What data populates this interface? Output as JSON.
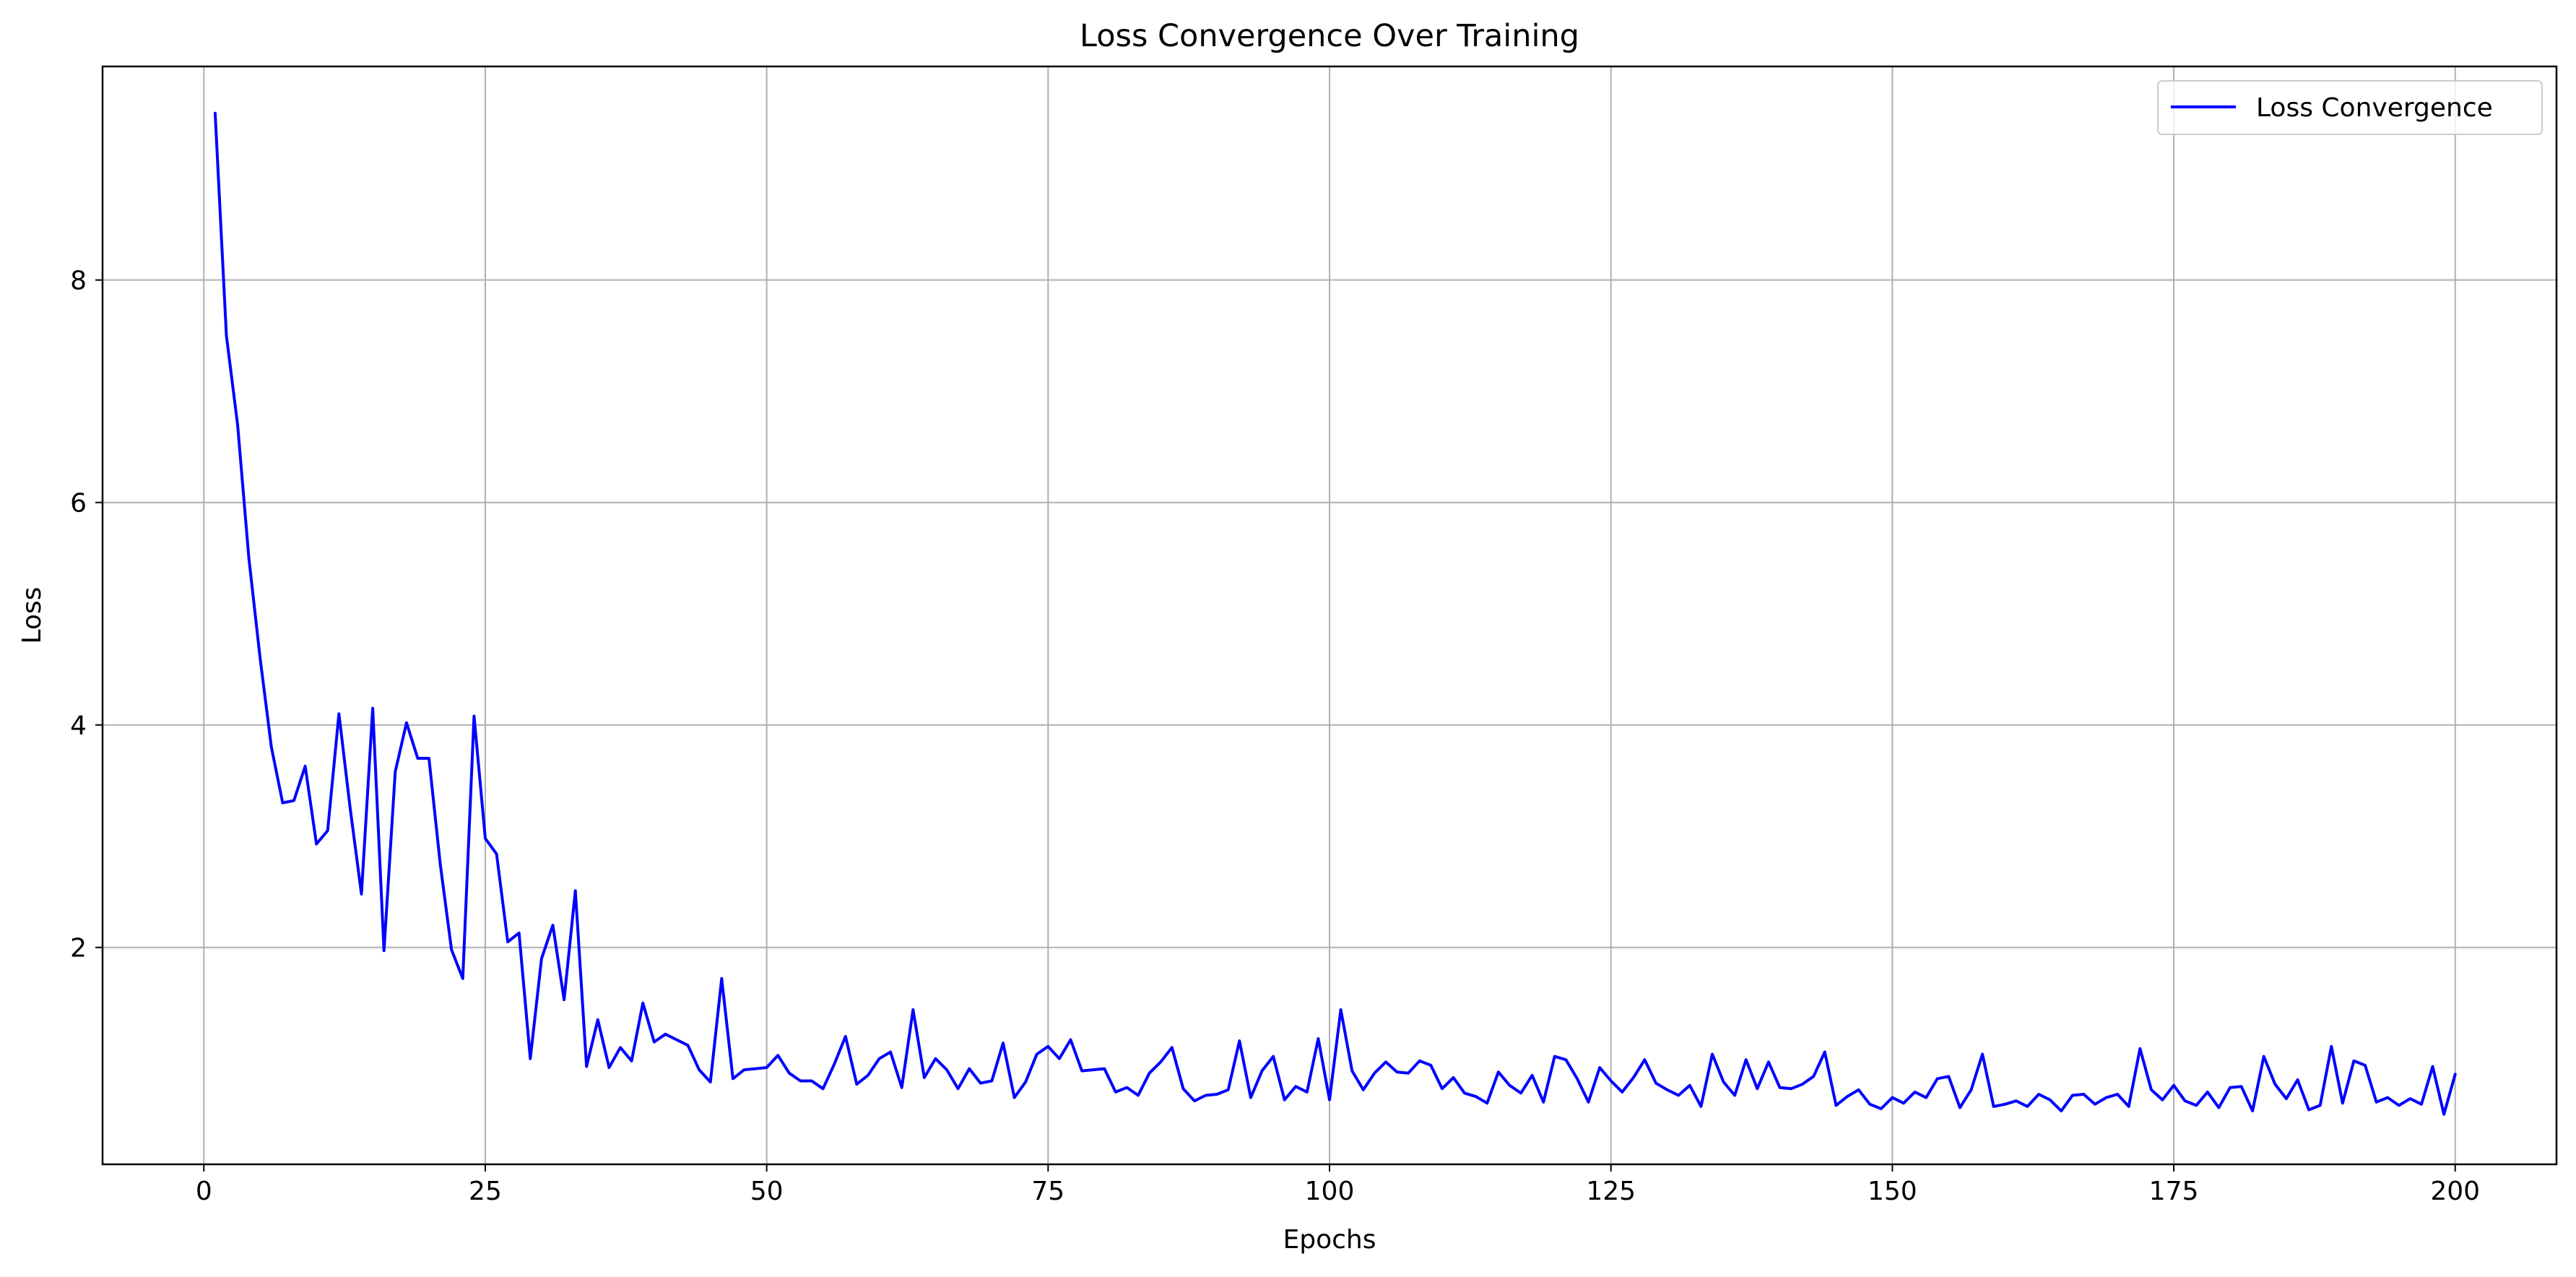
{
  "chart_data": {
    "type": "line",
    "title": "Loss Convergence Over Training",
    "xlabel": "Epochs",
    "ylabel": "Loss",
    "xlim": [
      -9,
      209
    ],
    "ylim": [
      0.05,
      9.92
    ],
    "xticks": [
      0,
      25,
      50,
      75,
      100,
      125,
      150,
      175,
      200
    ],
    "yticks": [
      2,
      4,
      6,
      8
    ],
    "grid": true,
    "legend_position": "top-right",
    "series": [
      {
        "name": "Loss Convergence",
        "color": "#0000ff",
        "x": [
          1,
          2,
          3,
          4,
          5,
          6,
          7,
          8,
          9,
          10,
          11,
          12,
          13,
          14,
          15,
          16,
          17,
          18,
          19,
          20,
          21,
          22,
          23,
          24,
          25,
          26,
          27,
          28,
          29,
          30,
          31,
          32,
          33,
          34,
          35,
          36,
          37,
          38,
          39,
          40,
          41,
          42,
          43,
          44,
          45,
          46,
          47,
          48,
          49,
          50,
          51,
          52,
          53,
          54,
          55,
          56,
          57,
          58,
          59,
          60,
          61,
          62,
          63,
          64,
          65,
          66,
          67,
          68,
          69,
          70,
          71,
          72,
          73,
          74,
          75,
          76,
          77,
          78,
          79,
          80,
          81,
          82,
          83,
          84,
          85,
          86,
          87,
          88,
          89,
          90,
          91,
          92,
          93,
          94,
          95,
          96,
          97,
          98,
          99,
          100,
          101,
          102,
          103,
          104,
          105,
          106,
          107,
          108,
          109,
          110,
          111,
          112,
          113,
          114,
          115,
          116,
          117,
          118,
          119,
          120,
          121,
          122,
          123,
          124,
          125,
          126,
          127,
          128,
          129,
          130,
          131,
          132,
          133,
          134,
          135,
          136,
          137,
          138,
          139,
          140,
          141,
          142,
          143,
          144,
          145,
          146,
          147,
          148,
          149,
          150,
          151,
          152,
          153,
          154,
          155,
          156,
          157,
          158,
          159,
          160,
          161,
          162,
          163,
          164,
          165,
          166,
          167,
          168,
          169,
          170,
          171,
          172,
          173,
          174,
          175,
          176,
          177,
          178,
          179,
          180,
          181,
          182,
          183,
          184,
          185,
          186,
          187,
          188,
          189,
          190,
          191,
          192,
          193,
          194,
          195,
          196,
          197,
          198,
          199,
          200
        ],
        "y": [
          9.5,
          7.5,
          6.7,
          5.5,
          4.6,
          3.8,
          3.3,
          3.32,
          3.63,
          2.93,
          3.05,
          4.1,
          3.25,
          2.48,
          4.15,
          1.97,
          3.58,
          4.02,
          3.7,
          3.7,
          2.75,
          1.98,
          1.72,
          4.08,
          2.98,
          2.84,
          2.05,
          2.13,
          1.0,
          1.9,
          2.2,
          1.53,
          2.51,
          0.93,
          1.35,
          0.92,
          1.1,
          0.98,
          1.5,
          1.15,
          1.22,
          1.17,
          1.12,
          0.9,
          0.79,
          1.72,
          0.82,
          0.9,
          0.91,
          0.92,
          1.03,
          0.87,
          0.8,
          0.8,
          0.73,
          0.95,
          1.2,
          0.77,
          0.85,
          1.0,
          1.06,
          0.74,
          1.44,
          0.83,
          1.0,
          0.9,
          0.73,
          0.91,
          0.78,
          0.8,
          1.14,
          0.65,
          0.79,
          1.04,
          1.11,
          1.0,
          1.17,
          0.89,
          0.9,
          0.91,
          0.7,
          0.74,
          0.67,
          0.87,
          0.97,
          1.1,
          0.73,
          0.62,
          0.67,
          0.68,
          0.72,
          1.16,
          0.65,
          0.89,
          1.02,
          0.63,
          0.75,
          0.7,
          1.18,
          0.63,
          1.44,
          0.89,
          0.72,
          0.87,
          0.97,
          0.88,
          0.87,
          0.98,
          0.94,
          0.73,
          0.83,
          0.69,
          0.66,
          0.6,
          0.88,
          0.76,
          0.69,
          0.85,
          0.61,
          1.02,
          0.99,
          0.82,
          0.61,
          0.92,
          0.8,
          0.7,
          0.83,
          0.99,
          0.78,
          0.72,
          0.67,
          0.76,
          0.57,
          1.04,
          0.79,
          0.67,
          0.99,
          0.73,
          0.97,
          0.74,
          0.73,
          0.77,
          0.84,
          1.06,
          0.58,
          0.66,
          0.72,
          0.59,
          0.55,
          0.65,
          0.6,
          0.7,
          0.65,
          0.82,
          0.84,
          0.56,
          0.72,
          1.04,
          0.57,
          0.59,
          0.62,
          0.57,
          0.68,
          0.63,
          0.53,
          0.67,
          0.68,
          0.59,
          0.65,
          0.68,
          0.57,
          1.09,
          0.72,
          0.63,
          0.76,
          0.62,
          0.58,
          0.7,
          0.56,
          0.74,
          0.75,
          0.53,
          1.02,
          0.77,
          0.64,
          0.81,
          0.54,
          0.58,
          1.11,
          0.6,
          0.98,
          0.94,
          0.61,
          0.65,
          0.58,
          0.64,
          0.59,
          0.93,
          0.5,
          0.86
        ]
      }
    ]
  }
}
